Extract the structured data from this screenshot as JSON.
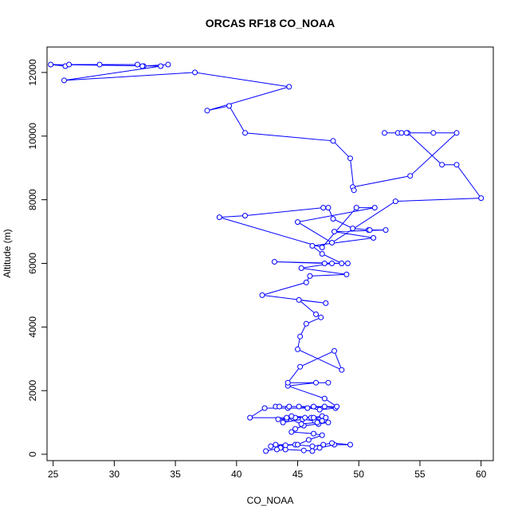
{
  "chart_data": {
    "type": "line",
    "title": "ORCAS RF18 CO_NOAA",
    "xlabel": "CO_NOAA",
    "ylabel": "Altitude (m)",
    "xlim": [
      24.5,
      61
    ],
    "ylim": [
      -200,
      12800
    ],
    "xticks": [
      25,
      30,
      35,
      40,
      45,
      50,
      55,
      60
    ],
    "yticks": [
      0,
      2000,
      4000,
      6000,
      8000,
      10000,
      12000
    ],
    "xtick_labels": [
      "25",
      "30",
      "35",
      "40",
      "45",
      "50",
      "55",
      "60"
    ],
    "ytick_labels": [
      "0",
      "2000",
      "4000",
      "6000",
      "8000",
      "10000",
      "12000"
    ],
    "series": [
      {
        "name": "CO_NOAA",
        "color": "#0000ff",
        "marker": "open-circle",
        "x": [
          42.4,
          43.6,
          43.3,
          44.0,
          45.5,
          46.2,
          46.8,
          48.0,
          49.3,
          47.8,
          47.1,
          46.2,
          44.8,
          43.2,
          42.8,
          44.0,
          45.0,
          45.9,
          47.0,
          46.3,
          44.5,
          44.8,
          45.5,
          46.7,
          47.5,
          46.4,
          45.4,
          43.8,
          44.1,
          43.4,
          44.8,
          46.1,
          47.0,
          47.3,
          45.6,
          44.5,
          46.3,
          47.0,
          46.6,
          45.3,
          44.1,
          41.1,
          42.3,
          44.2,
          45.8,
          47.2,
          48.1,
          46.8,
          45.1,
          43.2,
          43.5,
          44.3,
          46.3,
          48.2,
          47.2,
          44.2,
          46.5,
          47.5,
          44.2,
          45.2,
          48.0,
          48.6,
          45.0,
          45.2,
          45.7,
          46.9,
          46.5,
          45.1,
          47.3,
          42.1,
          45.7,
          46.0,
          49.0,
          45.3,
          47.8,
          49.1,
          47.2,
          43.1,
          48.6,
          47.0,
          46.2,
          51.2,
          48.0,
          52.2,
          50.8,
          50.9,
          49.5,
          47.9,
          47.5,
          47.1,
          40.7,
          38.6,
          47.0,
          49.8,
          51.3,
          45.0,
          47.8,
          53.0,
          60.0,
          58.0,
          56.8,
          54.0,
          53.2,
          53.5,
          53.9,
          52.1,
          56.1,
          58.0,
          54.2,
          49.5,
          49.6,
          49.3,
          47.9,
          40.7,
          39.4,
          37.6,
          44.3,
          36.6,
          25.9,
          33.8,
          24.8,
          26.0,
          26.3,
          28.8,
          31.9,
          32.4,
          32.3,
          34.4
        ],
        "y": [
          100,
          200,
          150,
          150,
          120,
          100,
          200,
          300,
          300,
          350,
          300,
          250,
          300,
          300,
          250,
          280,
          300,
          450,
          600,
          650,
          700,
          800,
          900,
          950,
          1000,
          1050,
          1100,
          1000,
          1100,
          1100,
          1150,
          1150,
          1200,
          1150,
          1150,
          1200,
          1150,
          1050,
          1000,
          950,
          1150,
          1150,
          1450,
          1450,
          1450,
          1500,
          1450,
          1400,
          1500,
          1500,
          1500,
          1500,
          1500,
          1500,
          1750,
          2150,
          2250,
          2250,
          2250,
          2750,
          3250,
          2650,
          3300,
          3700,
          4100,
          4300,
          4400,
          4850,
          4750,
          5000,
          5400,
          5600,
          5650,
          5850,
          6000,
          6000,
          6000,
          6050,
          6000,
          6300,
          6550,
          6800,
          7000,
          7050,
          7050,
          7050,
          7100,
          7400,
          7750,
          7750,
          7500,
          7450,
          6500,
          7750,
          7750,
          7300,
          6650,
          7950,
          8050,
          9100,
          9100,
          10100,
          10100,
          10100,
          10100,
          10100,
          10100,
          10100,
          8750,
          8400,
          8300,
          9300,
          9850,
          10100,
          10950,
          10800,
          11550,
          12000,
          11750,
          12200,
          12250,
          12200,
          12250,
          12250,
          12250,
          12200,
          12200,
          12250
        ]
      }
    ]
  }
}
